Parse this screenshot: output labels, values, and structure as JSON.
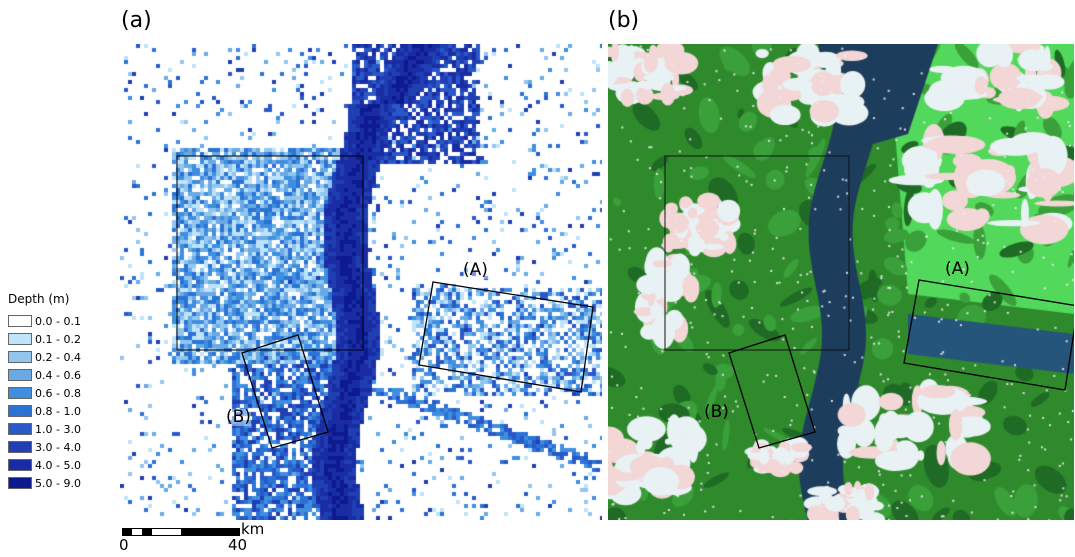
{
  "panels": {
    "a": {
      "label": "(a)"
    },
    "b": {
      "label": "(b)"
    }
  },
  "regions": {
    "A": "(A)",
    "B": "(B)"
  },
  "legend": {
    "title": "Depth (m)",
    "items": [
      {
        "label": "0.0 - 0.1",
        "color": "#ffffff"
      },
      {
        "label": "0.1 - 0.2",
        "color": "#bfe3f8"
      },
      {
        "label": "0.2 - 0.4",
        "color": "#92c6ee"
      },
      {
        "label": "0.4 - 0.6",
        "color": "#69a9e4"
      },
      {
        "label": "0.6 - 0.8",
        "color": "#3f8ee0"
      },
      {
        "label": "0.8 - 1.0",
        "color": "#2a73d4"
      },
      {
        "label": "1.0 - 3.0",
        "color": "#2958c8"
      },
      {
        "label": "3.0 - 4.0",
        "color": "#1f3fb3"
      },
      {
        "label": "4.0 - 5.0",
        "color": "#1a2ca3"
      },
      {
        "label": "5.0 - 9.0",
        "color": "#0d1a8f"
      }
    ]
  },
  "scale": {
    "start": "0",
    "end": "40",
    "unit": "km"
  },
  "colors": {
    "satellite_vegetation": "#2f8a2c",
    "satellite_bright_green": "#52d85a",
    "satellite_water": "#1d3d5c",
    "satellite_cloud": "#e8f2f4"
  }
}
